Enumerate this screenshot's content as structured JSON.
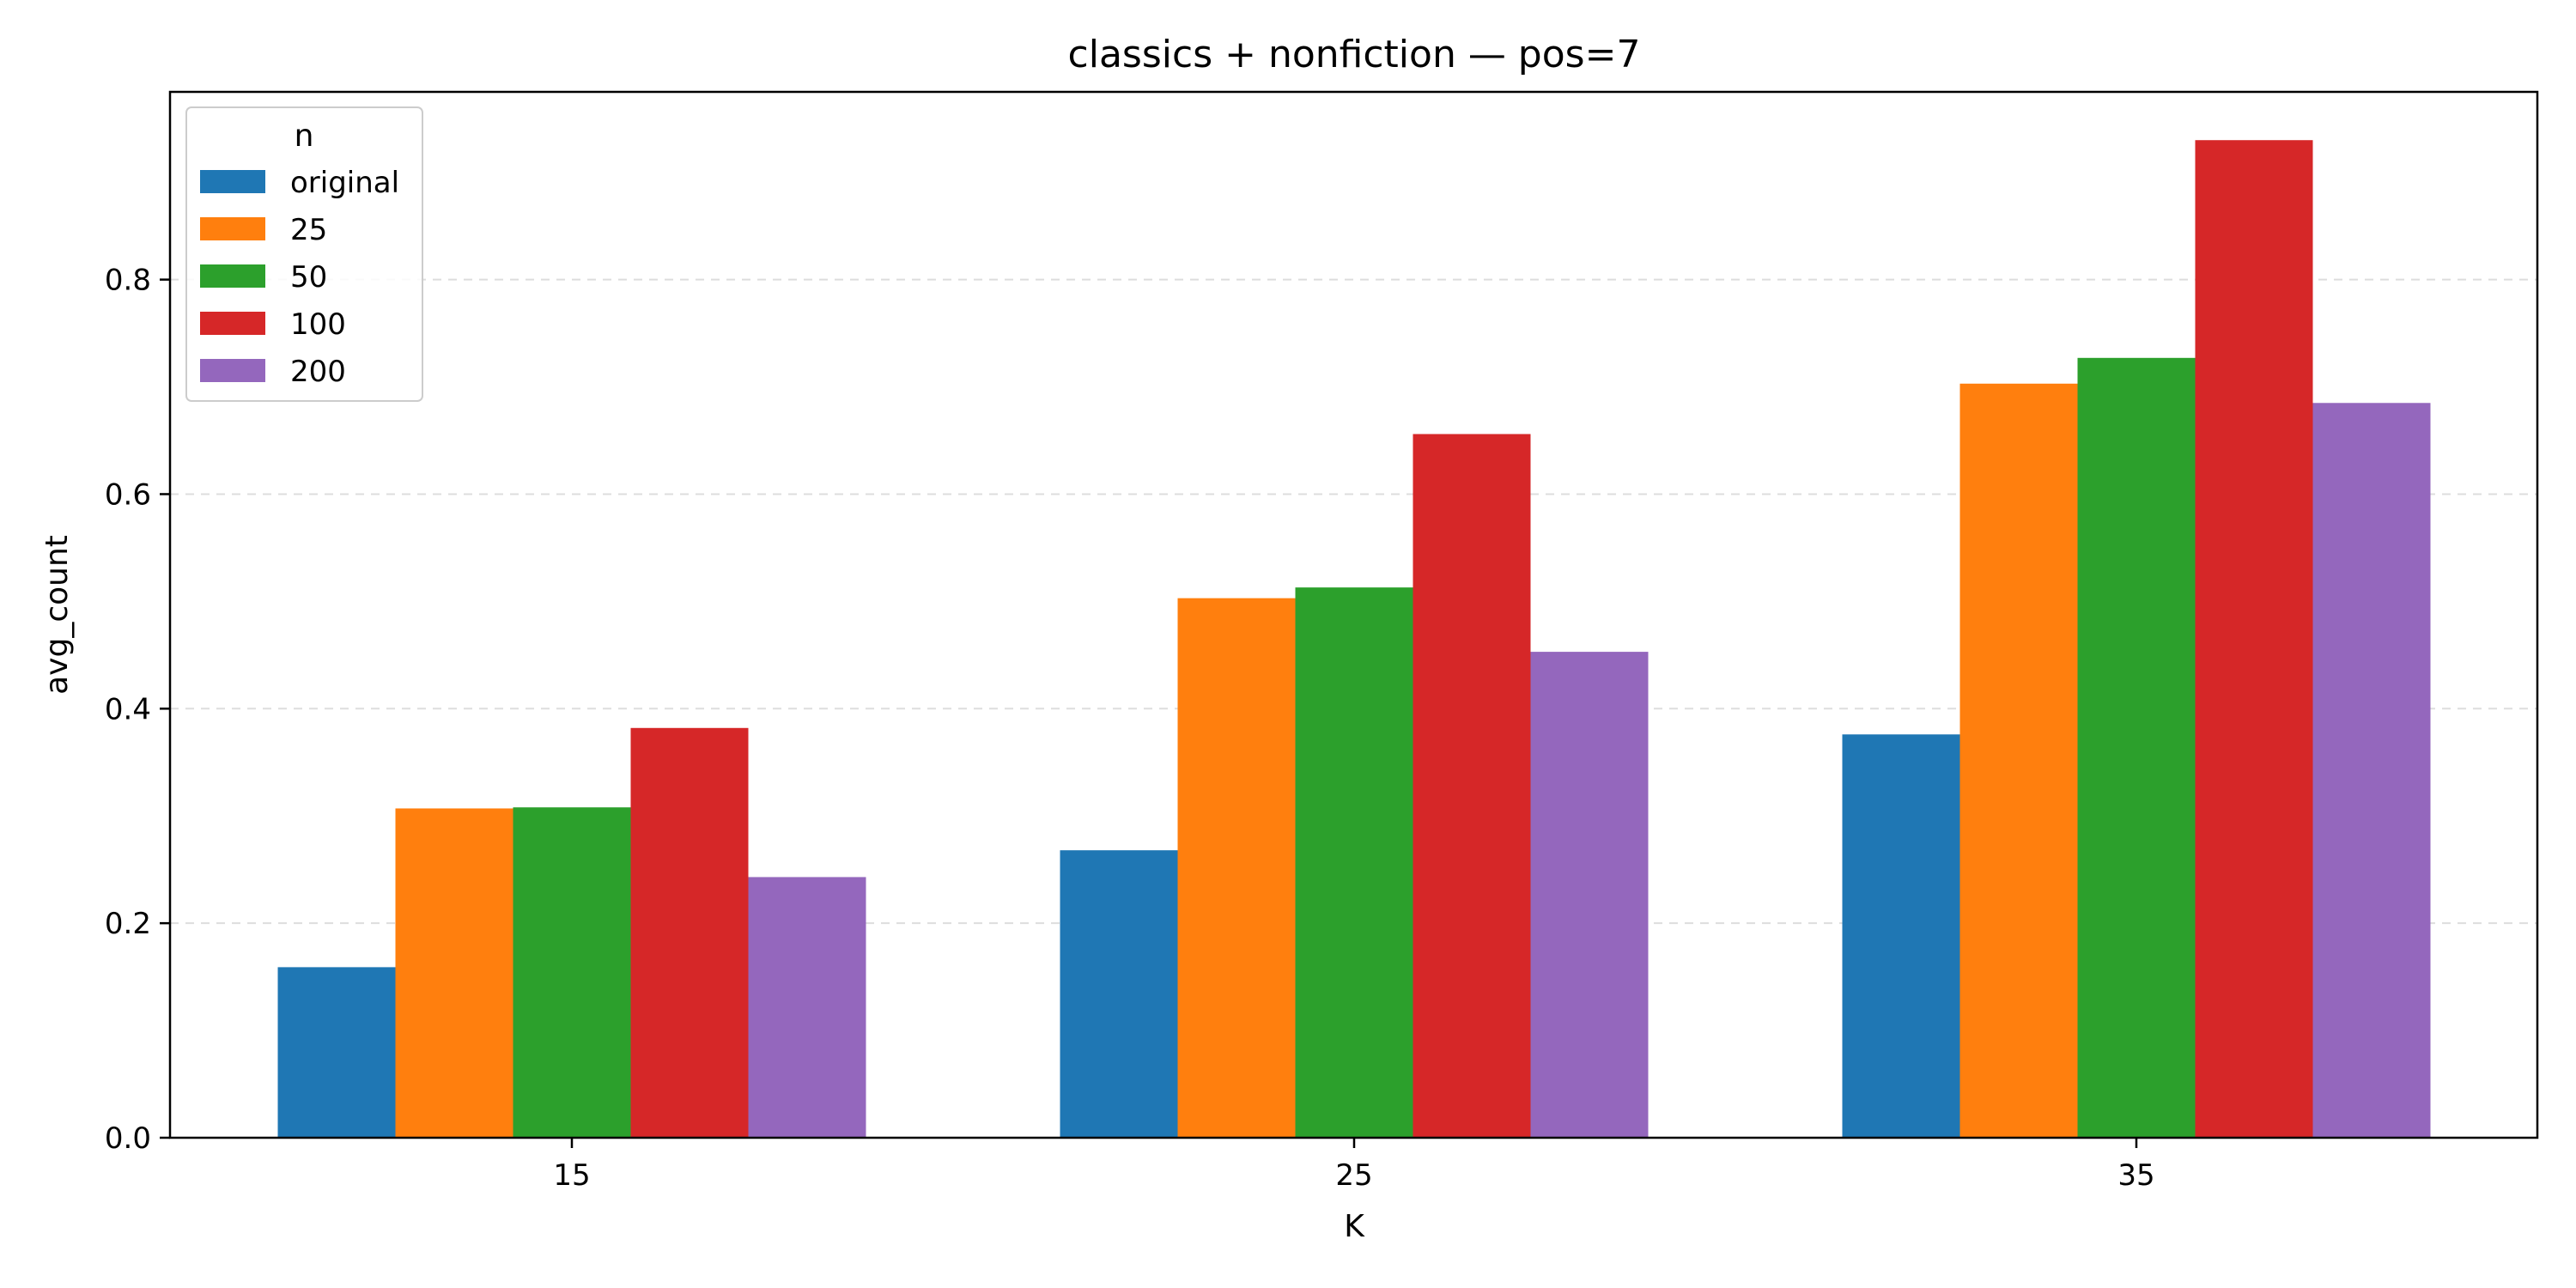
{
  "chart_data": {
    "type": "bar",
    "title": "classics + nonfiction — pos=7",
    "xlabel": "K",
    "ylabel": "avg_count",
    "categories": [
      "15",
      "25",
      "35"
    ],
    "ylim": [
      0,
      0.975
    ],
    "yticks": [
      "0.0",
      "0.2",
      "0.4",
      "0.6",
      "0.8"
    ],
    "ytick_values": [
      0.0,
      0.2,
      0.4,
      0.6,
      0.8
    ],
    "grid": "horizontal dashed",
    "legend": {
      "title": "n",
      "placement": "top-left"
    },
    "series": [
      {
        "name": "original",
        "color": "#1f77b4",
        "values": [
          0.159,
          0.268,
          0.376
        ]
      },
      {
        "name": "25",
        "color": "#ff7f0e",
        "values": [
          0.307,
          0.503,
          0.703
        ]
      },
      {
        "name": "50",
        "color": "#2ca02c",
        "values": [
          0.308,
          0.513,
          0.727
        ]
      },
      {
        "name": "100",
        "color": "#d62728",
        "values": [
          0.382,
          0.656,
          0.93
        ]
      },
      {
        "name": "200",
        "color": "#9467bd",
        "values": [
          0.243,
          0.453,
          0.685
        ]
      }
    ]
  }
}
